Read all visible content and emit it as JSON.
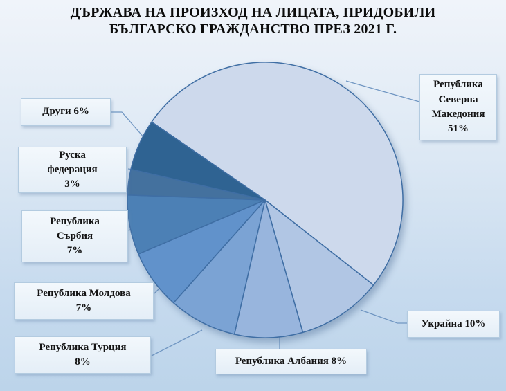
{
  "title": {
    "line1": "ДЪРЖАВА НА ПРОИЗХОД НА ЛИЦАТА, ПРИДОБИЛИ",
    "line2": "БЪЛГАРСКО ГРАЖДАНСТВО ПРЕЗ 2021 Г."
  },
  "chart_data": {
    "type": "pie",
    "title": "ДЪРЖАВА НА ПРОИЗХОД НА ЛИЦАТА, ПРИДОБИЛИ БЪЛГАРСКО ГРАЖДАНСТВО ПРЕЗ 2021 Г.",
    "categories": [
      "Република Северна Македония",
      "Украйна",
      "Република Албания",
      "Република Турция",
      "Република Молдова",
      "Република Сърбия",
      "Руска федерация",
      "Други"
    ],
    "values": [
      51,
      10,
      8,
      8,
      7,
      7,
      3,
      6
    ],
    "unit": "%",
    "colors": [
      "#cdd9ec",
      "#b1c6e4",
      "#98b5dd",
      "#7ba3d4",
      "#6192cb",
      "#4c80b5",
      "#44719e",
      "#2f6392"
    ],
    "start_angle_deg": 304.5,
    "direction": "clockwise",
    "legend_position": "none",
    "labels_as_callouts": true
  },
  "callouts": [
    {
      "name": "north-macedonia",
      "lines": [
        "Република",
        "Северна",
        "Македония",
        "51%"
      ]
    },
    {
      "name": "ukraine",
      "lines": [
        "Украйна 10%"
      ]
    },
    {
      "name": "albania",
      "lines": [
        "Република Албания 8%"
      ]
    },
    {
      "name": "turkey",
      "lines": [
        "Република Турция",
        "8%"
      ]
    },
    {
      "name": "moldova",
      "lines": [
        "Република Молдова",
        "7%"
      ]
    },
    {
      "name": "serbia",
      "lines": [
        "Република",
        "Сърбия",
        "7%"
      ]
    },
    {
      "name": "russia",
      "lines": [
        "Руска",
        "федерация",
        "3%"
      ]
    },
    {
      "name": "others",
      "lines": [
        "Други 6%"
      ]
    }
  ],
  "colors": {
    "background_top": "#f0f4fa",
    "background_bottom": "#bcd4ea",
    "slice_stroke": "#3f6ea4",
    "leader_line": "#7096c2",
    "callout_background": "#e9f1f9",
    "callout_border": "#b3cbe0",
    "text": "#141414"
  }
}
